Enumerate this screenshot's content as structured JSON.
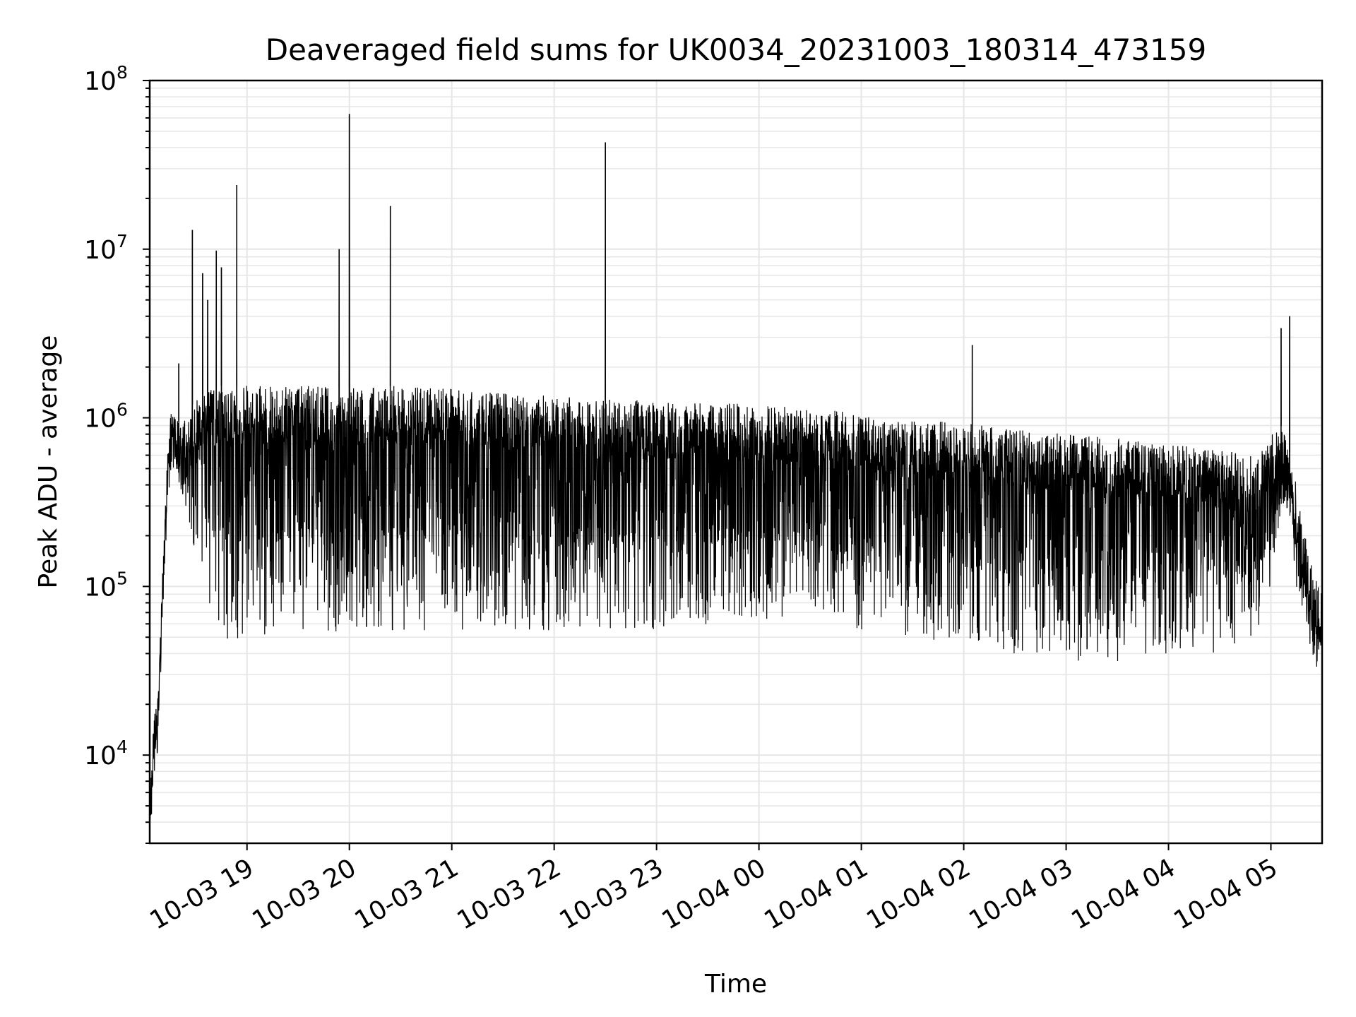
{
  "chart_data": {
    "type": "line",
    "title": "Deaveraged field sums for UK0034_20231003_180314_473159",
    "xlabel": "Time",
    "ylabel": "Peak ADU - average",
    "yscale": "log",
    "grid": true,
    "line_color": "#000000",
    "grid_color": "#e6e6e6",
    "xlim": [
      "2023-10-03 18:03",
      "2023-10-04 05:30"
    ],
    "ylim": [
      3000,
      100000000
    ],
    "x_ticks": [
      {
        "value": "2023-10-03 19:00",
        "label": "10-03 19"
      },
      {
        "value": "2023-10-03 20:00",
        "label": "10-03 20"
      },
      {
        "value": "2023-10-03 21:00",
        "label": "10-03 21"
      },
      {
        "value": "2023-10-03 22:00",
        "label": "10-03 22"
      },
      {
        "value": "2023-10-03 23:00",
        "label": "10-03 23"
      },
      {
        "value": "2023-10-04 00:00",
        "label": "10-04 00"
      },
      {
        "value": "2023-10-04 01:00",
        "label": "10-04 01"
      },
      {
        "value": "2023-10-04 02:00",
        "label": "10-04 02"
      },
      {
        "value": "2023-10-04 03:00",
        "label": "10-04 03"
      },
      {
        "value": "2023-10-04 04:00",
        "label": "10-04 04"
      },
      {
        "value": "2023-10-04 05:00",
        "label": "10-04 05"
      }
    ],
    "y_ticks": [
      {
        "value": 10000,
        "base": "10",
        "exp": "4"
      },
      {
        "value": 100000,
        "base": "10",
        "exp": "5"
      },
      {
        "value": 1000000,
        "base": "10",
        "exp": "6"
      },
      {
        "value": 10000000,
        "base": "10",
        "exp": "7"
      },
      {
        "value": 100000000,
        "base": "10",
        "exp": "8"
      }
    ],
    "series": [
      {
        "name": "",
        "x": [
          "2023-10-03 18:03",
          "2023-10-03 18:05",
          "2023-10-03 18:08",
          "2023-10-03 18:10",
          "2023-10-03 18:13",
          "2023-10-03 18:15",
          "2023-10-03 18:18",
          "2023-10-03 18:20",
          "2023-10-03 18:22",
          "2023-10-03 18:26",
          "2023-10-03 18:30",
          "2023-10-03 18:35",
          "2023-10-03 18:40",
          "2023-10-03 18:45",
          "2023-10-03 18:50",
          "2023-10-03 18:55",
          "2023-10-03 19:00",
          "2023-10-03 19:30",
          "2023-10-03 20:00",
          "2023-10-03 20:30",
          "2023-10-03 21:00",
          "2023-10-03 21:30",
          "2023-10-03 22:00",
          "2023-10-03 22:30",
          "2023-10-03 23:00",
          "2023-10-03 23:30",
          "2023-10-04 00:00",
          "2023-10-04 00:30",
          "2023-10-04 01:00",
          "2023-10-04 01:30",
          "2023-10-04 02:00",
          "2023-10-04 02:30",
          "2023-10-04 03:00",
          "2023-10-04 03:30",
          "2023-10-04 04:00",
          "2023-10-04 04:30",
          "2023-10-04 04:50",
          "2023-10-04 05:00",
          "2023-10-04 05:05",
          "2023-10-04 05:10",
          "2023-10-04 05:15",
          "2023-10-04 05:20",
          "2023-10-04 05:25",
          "2023-10-04 05:30"
        ],
        "upper_envelope": [
          5000,
          15000,
          25000,
          90000,
          500000,
          1100000,
          1000000,
          950000,
          900000,
          1100000,
          1300000,
          1400000,
          1500000,
          1550000,
          1500000,
          1550000,
          1550000,
          1550000,
          1500000,
          1550000,
          1500000,
          1400000,
          1350000,
          1300000,
          1250000,
          1250000,
          1200000,
          1150000,
          1050000,
          950000,
          950000,
          850000,
          800000,
          750000,
          700000,
          650000,
          600000,
          800000,
          950000,
          700000,
          400000,
          200000,
          120000,
          90000
        ],
        "lower_envelope": [
          5000,
          12000,
          20000,
          70000,
          400000,
          900000,
          700000,
          450000,
          350000,
          250000,
          150000,
          90000,
          60000,
          50000,
          45000,
          45000,
          45000,
          48000,
          55000,
          55000,
          55000,
          55000,
          55000,
          55000,
          55000,
          60000,
          60000,
          65000,
          55000,
          50000,
          45000,
          38000,
          35000,
          35000,
          38000,
          40000,
          45000,
          100000,
          250000,
          300000,
          100000,
          60000,
          35000,
          30000
        ],
        "spikes": [
          {
            "x": "2023-10-03 18:20",
            "y": 2100000
          },
          {
            "x": "2023-10-03 18:28",
            "y": 13000000
          },
          {
            "x": "2023-10-03 18:34",
            "y": 7200000
          },
          {
            "x": "2023-10-03 18:37",
            "y": 5000000
          },
          {
            "x": "2023-10-03 18:42",
            "y": 9800000
          },
          {
            "x": "2023-10-03 18:45",
            "y": 7800000
          },
          {
            "x": "2023-10-03 18:54",
            "y": 24000000
          },
          {
            "x": "2023-10-03 19:54",
            "y": 10000000
          },
          {
            "x": "2023-10-03 20:00",
            "y": 63000000
          },
          {
            "x": "2023-10-03 20:24",
            "y": 18000000
          },
          {
            "x": "2023-10-03 22:30",
            "y": 43000000
          },
          {
            "x": "2023-10-04 02:05",
            "y": 2700000
          },
          {
            "x": "2023-10-04 05:06",
            "y": 3400000
          },
          {
            "x": "2023-10-04 05:11",
            "y": 4000000
          }
        ]
      }
    ]
  }
}
